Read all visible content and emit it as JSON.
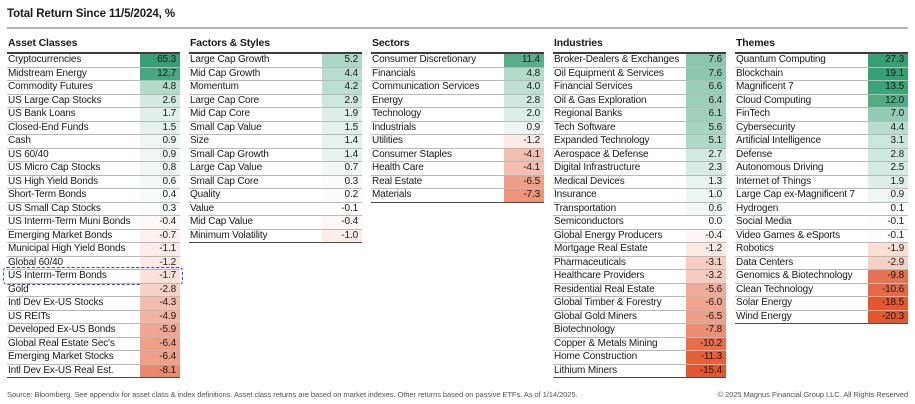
{
  "title": "Total Return Since 11/5/2024, %",
  "footer": {
    "source": "Source: Bloomberg. See appendix for asset class & index definitions. Asset class returns are based on market indexes. Other returns based on passive ETFs. As of 1/14/2025.",
    "copyright": "© 2025 Magnus Financial Group LLC. All Rights Reserved"
  },
  "chart_data": {
    "type": "table",
    "title": "Total Return Since 11/5/2024, %",
    "value_unit": "%",
    "legend": "cell background is a diverging heatmap: green = positive return, red/orange = negative return",
    "color_scale": {
      "positive_max_color": "#35a073",
      "negative_max_color": "#e4572e",
      "neutral_color": "#ffffff",
      "positive_saturates_at": 14,
      "negative_saturates_at": 12,
      "curve_power": 0.9
    },
    "highlighted_row": {
      "column": "Asset Classes",
      "label": "US Interm-Term Bonds",
      "style": "blue dashed rounded outline",
      "border_color": "#2d46d9"
    },
    "columns": [
      {
        "header": "Asset Classes",
        "rows": [
          {
            "label": "Cryptocurrencies",
            "value": 65.3
          },
          {
            "label": "Midstream Energy",
            "value": 12.7
          },
          {
            "label": "Commodity Futures",
            "value": 4.8
          },
          {
            "label": "US Large Cap Stocks",
            "value": 2.6
          },
          {
            "label": "US Bank Loans",
            "value": 1.7
          },
          {
            "label": "Closed-End Funds",
            "value": 1.5
          },
          {
            "label": "Cash",
            "value": 0.9
          },
          {
            "label": "US 60/40",
            "value": 0.9
          },
          {
            "label": "US Micro Cap Stocks",
            "value": 0.8
          },
          {
            "label": "US High Yield Bonds",
            "value": 0.6
          },
          {
            "label": "Short-Term Bonds",
            "value": 0.4
          },
          {
            "label": "US Small Cap Stocks",
            "value": 0.3
          },
          {
            "label": "US Interm-Term Muni Bonds",
            "value": -0.4
          },
          {
            "label": "Emerging Market Bonds",
            "value": -0.7
          },
          {
            "label": "Municipal High Yield Bonds",
            "value": -1.1
          },
          {
            "label": "Global 60/40",
            "value": -1.2
          },
          {
            "label": "US Interm-Term Bonds",
            "value": -1.7,
            "highlight": true
          },
          {
            "label": "Gold",
            "value": -2.8
          },
          {
            "label": "Intl Dev Ex-US Stocks",
            "value": -4.3
          },
          {
            "label": "US REITs",
            "value": -4.9
          },
          {
            "label": "Developed Ex-US Bonds",
            "value": -5.9
          },
          {
            "label": "Global Real Estate Sec's",
            "value": -6.4
          },
          {
            "label": "Emerging Market Stocks",
            "value": -6.4
          },
          {
            "label": "Intl Dev Ex-US Real Est.",
            "value": -8.1
          }
        ]
      },
      {
        "header": "Factors & Styles",
        "rows": [
          {
            "label": "Large Cap Growth",
            "value": 5.2
          },
          {
            "label": "Mid Cap Growth",
            "value": 4.4
          },
          {
            "label": "Momentum",
            "value": 4.2
          },
          {
            "label": "Large Cap Core",
            "value": 2.9
          },
          {
            "label": "Mid Cap Core",
            "value": 1.9
          },
          {
            "label": "Small Cap Value",
            "value": 1.5
          },
          {
            "label": "Size",
            "value": 1.4
          },
          {
            "label": "Small Cap Growth",
            "value": 1.4
          },
          {
            "label": "Large Cap Value",
            "value": 0.7
          },
          {
            "label": "Small Cap Core",
            "value": 0.3
          },
          {
            "label": "Quality",
            "value": 0.2
          },
          {
            "label": "Value",
            "value": -0.1
          },
          {
            "label": "Mid Cap Value",
            "value": -0.4
          },
          {
            "label": "Minimum Volatility",
            "value": -1.0
          }
        ]
      },
      {
        "header": "Sectors",
        "rows": [
          {
            "label": "Consumer Discretionary",
            "value": 11.4
          },
          {
            "label": "Financials",
            "value": 4.8
          },
          {
            "label": "Communication Services",
            "value": 4.0
          },
          {
            "label": "Energy",
            "value": 2.8
          },
          {
            "label": "Technology",
            "value": 2.0
          },
          {
            "label": "Industrials",
            "value": 0.9
          },
          {
            "label": "Utilities",
            "value": -1.2
          },
          {
            "label": "Consumer Staples",
            "value": -4.1
          },
          {
            "label": "Health Care",
            "value": -4.1
          },
          {
            "label": "Real Estate",
            "value": -6.5
          },
          {
            "label": "Materials",
            "value": -7.3
          }
        ]
      },
      {
        "header": "Industries",
        "rows": [
          {
            "label": "Broker-Dealers & Exchanges",
            "value": 7.6
          },
          {
            "label": "Oil Equipment & Services",
            "value": 7.6
          },
          {
            "label": "Financial Services",
            "value": 6.6
          },
          {
            "label": "Oil & Gas Exploration",
            "value": 6.4
          },
          {
            "label": "Regional Banks",
            "value": 6.1
          },
          {
            "label": "Tech Software",
            "value": 5.6
          },
          {
            "label": "Expanded Technology",
            "value": 5.1
          },
          {
            "label": "Aerospace & Defense",
            "value": 2.7
          },
          {
            "label": "Digital Infrastructure",
            "value": 2.3
          },
          {
            "label": "Medical Devices",
            "value": 1.3
          },
          {
            "label": "Insurance",
            "value": 1.0
          },
          {
            "label": "Transportation",
            "value": 0.6
          },
          {
            "label": "Semiconductors",
            "value": 0.0
          },
          {
            "label": "Global Energy Producers",
            "value": -0.4
          },
          {
            "label": "Mortgage Real Estate",
            "value": -1.2
          },
          {
            "label": "Pharmaceuticals",
            "value": -3.1
          },
          {
            "label": "Healthcare Providers",
            "value": -3.2
          },
          {
            "label": "Residential Real Estate",
            "value": -5.6
          },
          {
            "label": "Global Timber & Forestry",
            "value": -6.0
          },
          {
            "label": "Global Gold Miners",
            "value": -6.5
          },
          {
            "label": "Biotechnology",
            "value": -7.8
          },
          {
            "label": "Copper & Metals Mining",
            "value": -10.2
          },
          {
            "label": "Home Construction",
            "value": -11.3
          },
          {
            "label": "Lithium Miners",
            "value": -15.4
          }
        ]
      },
      {
        "header": "Themes",
        "rows": [
          {
            "label": "Quantum Computing",
            "value": 27.3
          },
          {
            "label": "Blockchain",
            "value": 19.1
          },
          {
            "label": "Magnificent 7",
            "value": 13.5
          },
          {
            "label": "Cloud Computing",
            "value": 12.0
          },
          {
            "label": "FinTech",
            "value": 7.0
          },
          {
            "label": "Cybersecurity",
            "value": 4.4
          },
          {
            "label": "Artificial Intelligence",
            "value": 3.1
          },
          {
            "label": "Defense",
            "value": 2.8
          },
          {
            "label": "Autonomous Driving",
            "value": 2.5
          },
          {
            "label": "Internet of Things",
            "value": 1.9
          },
          {
            "label": "Large Cap ex-Magnificent 7",
            "value": 0.9
          },
          {
            "label": "Hydrogen",
            "value": 0.1
          },
          {
            "label": "Social Media",
            "value": -0.1
          },
          {
            "label": "Video Games & eSports",
            "value": -0.1
          },
          {
            "label": "Robotics",
            "value": -1.9
          },
          {
            "label": "Data Centers",
            "value": -2.9
          },
          {
            "label": "Genomics & Biotechnology",
            "value": -9.8
          },
          {
            "label": "Clean Technology",
            "value": -10.6
          },
          {
            "label": "Solar Energy",
            "value": -18.5
          },
          {
            "label": "Wind Energy",
            "value": -20.3
          }
        ]
      }
    ]
  }
}
